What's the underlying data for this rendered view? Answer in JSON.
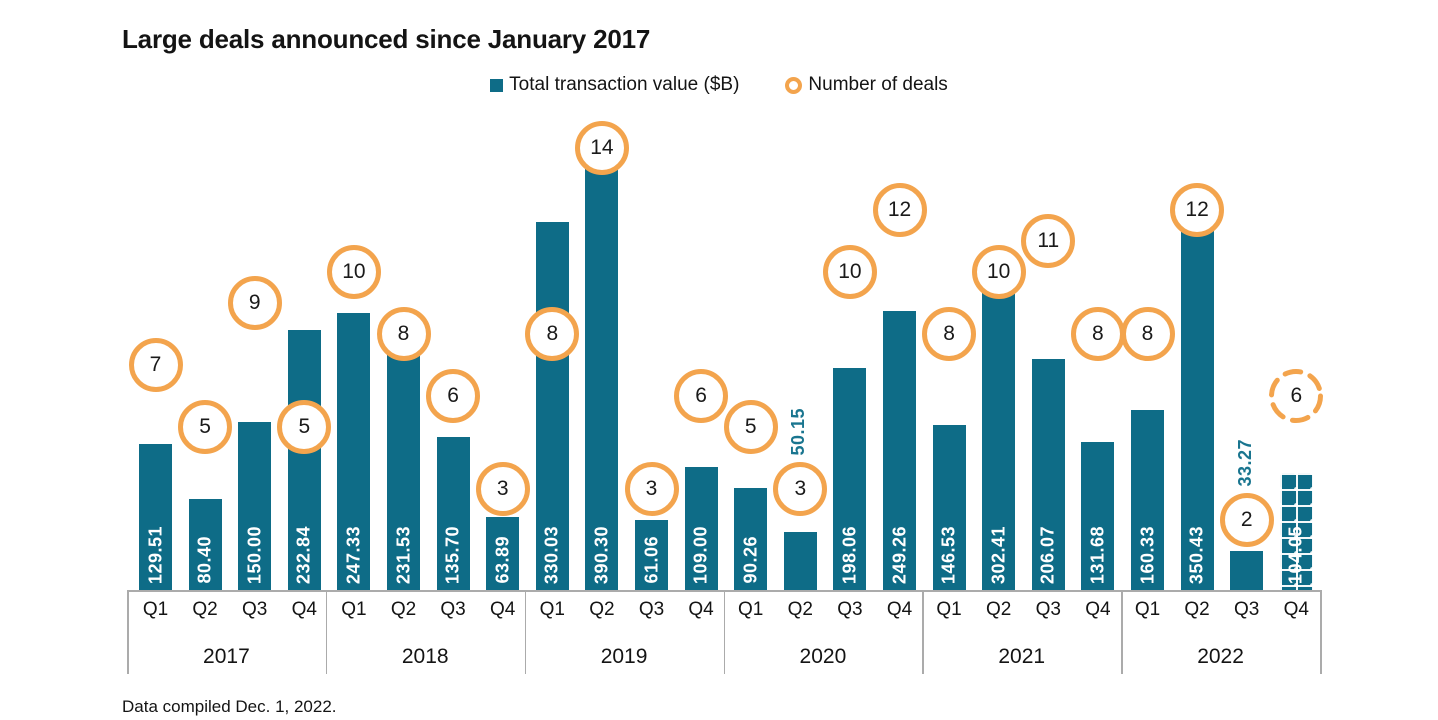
{
  "header": {
    "title": "Large deals announced since January 2017"
  },
  "legend": {
    "items": [
      {
        "label": "Total transaction value ($B)",
        "marker": "square-icon",
        "color": "#0E6C87"
      },
      {
        "label": "Number of deals",
        "marker": "ring-icon",
        "color": "#F3A44D"
      }
    ]
  },
  "footnote": "Data compiled Dec. 1, 2022.",
  "chart_data": {
    "type": "bar",
    "title": "Large deals announced since January 2017",
    "grid": false,
    "legend_position": "top",
    "years": [
      "2017",
      "2018",
      "2019",
      "2020",
      "2021",
      "2022"
    ],
    "quarters_per_year": [
      "Q1",
      "Q2",
      "Q3",
      "Q4"
    ],
    "series": [
      {
        "name": "Total transaction value ($B)",
        "type": "bar",
        "axis": "bars",
        "color": "#0E6C87",
        "values": [
          129.51,
          80.4,
          150.0,
          232.84,
          247.33,
          231.53,
          135.7,
          63.89,
          330.03,
          390.3,
          61.06,
          109.0,
          90.26,
          50.15,
          198.06,
          249.26,
          146.53,
          302.41,
          206.07,
          131.68,
          160.33,
          350.43,
          33.27,
          104.05
        ],
        "value_labels": [
          "129.51",
          "80.40",
          "150.00",
          "232.84",
          "247.33",
          "231.53",
          "135.70",
          "63.89",
          "330.03",
          "390.30",
          "61.06",
          "109.00",
          "90.26",
          "50.15",
          "198.06",
          "249.26",
          "146.53",
          "302.41",
          "206.07",
          "131.68",
          "160.33",
          "350.43",
          "33.27",
          "104.05"
        ]
      },
      {
        "name": "Number of deals",
        "type": "point",
        "axis": "circles",
        "color": "#F3A44D",
        "values": [
          7,
          5,
          9,
          5,
          10,
          8,
          6,
          3,
          8,
          14,
          3,
          6,
          5,
          3,
          10,
          12,
          8,
          10,
          11,
          8,
          8,
          12,
          2,
          6
        ]
      }
    ],
    "style_notes": {
      "outside_value_label_indices": [
        13,
        22
      ],
      "hatched_bar_indices": [
        23
      ],
      "dashed_circle_indices": [
        23
      ]
    },
    "footnote": "Data compiled Dec. 1, 2022."
  }
}
